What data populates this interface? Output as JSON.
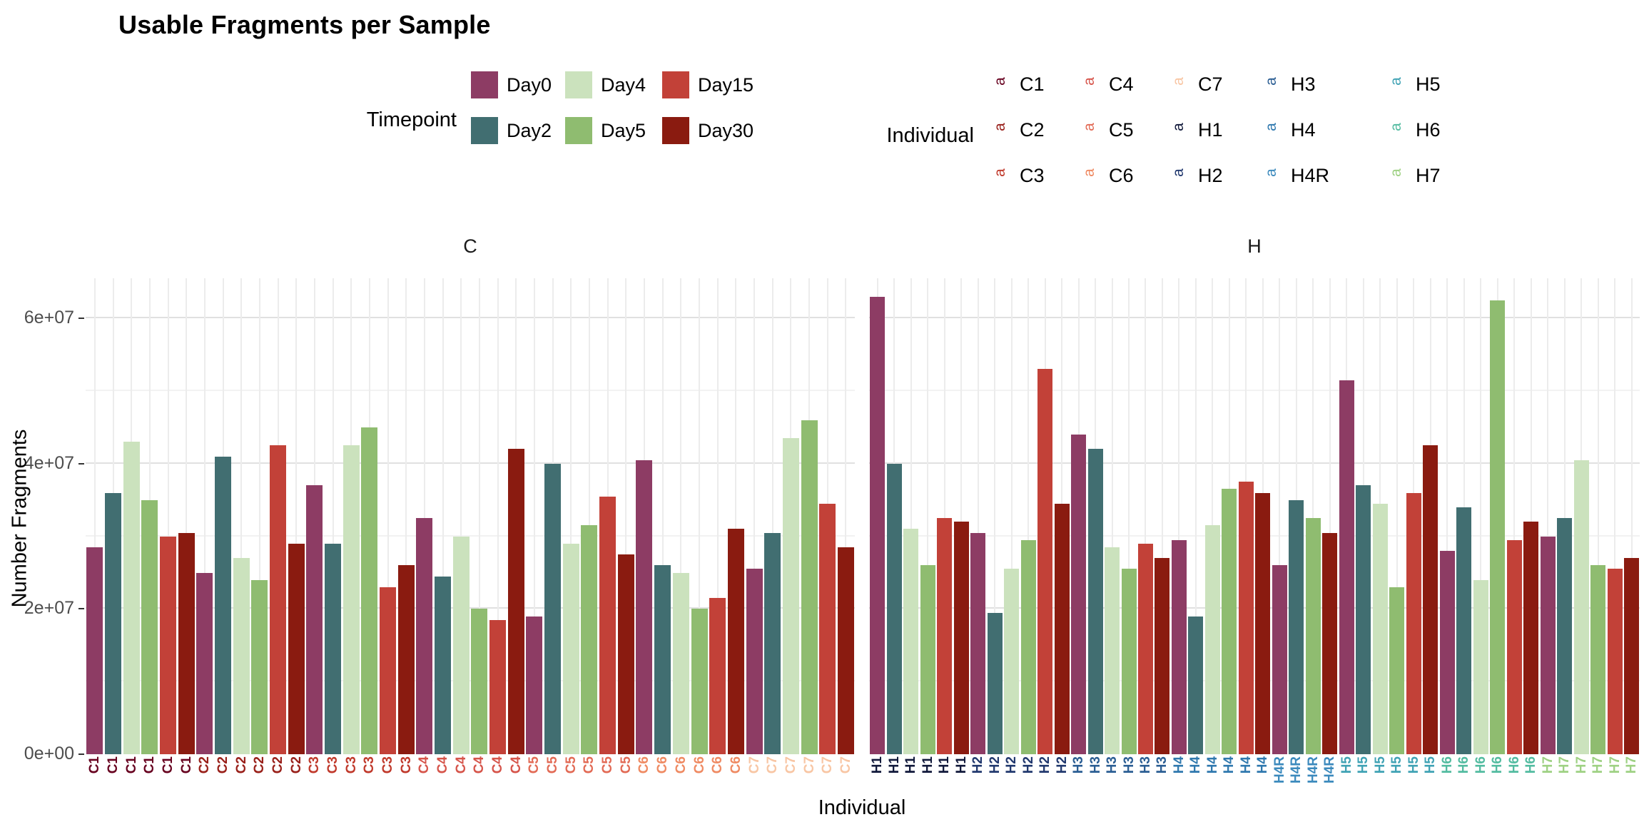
{
  "title": "Usable Fragments per Sample",
  "legends": {
    "timepoint": {
      "label": "Timepoint",
      "items": [
        {
          "label": "Day0",
          "color": "#8d3c64"
        },
        {
          "label": "Day2",
          "color": "#416e71"
        },
        {
          "label": "Day4",
          "color": "#cbe2bd"
        },
        {
          "label": "Day5",
          "color": "#8fbc70"
        },
        {
          "label": "Day15",
          "color": "#c24138"
        },
        {
          "label": "Day30",
          "color": "#8a1b10"
        }
      ]
    },
    "individual": {
      "label": "Individual",
      "glyph": "a",
      "items": [
        {
          "label": "C1",
          "color": "#67001f"
        },
        {
          "label": "C2",
          "color": "#99201a"
        },
        {
          "label": "C3",
          "color": "#c0392b"
        },
        {
          "label": "C4",
          "color": "#d6544a"
        },
        {
          "label": "C5",
          "color": "#e26a55"
        },
        {
          "label": "C6",
          "color": "#ef8a62"
        },
        {
          "label": "C7",
          "color": "#f8c6a4"
        },
        {
          "label": "H1",
          "color": "#10183a"
        },
        {
          "label": "H2",
          "color": "#21386e"
        },
        {
          "label": "H3",
          "color": "#2a5d93"
        },
        {
          "label": "H4",
          "color": "#2f78ae"
        },
        {
          "label": "H4R",
          "color": "#3c8abd"
        },
        {
          "label": "H5",
          "color": "#3fa2b4"
        },
        {
          "label": "H6",
          "color": "#52bba0"
        },
        {
          "label": "H7",
          "color": "#9ed183"
        }
      ]
    }
  },
  "chart_data": {
    "type": "bar",
    "title": "Usable Fragments per Sample",
    "xlabel": "Individual",
    "ylabel": "Number Fragments",
    "ylim": [
      0,
      65500000
    ],
    "grid": true,
    "yticks": [
      {
        "label": "0e+00",
        "value": 0
      },
      {
        "label": "2e+07",
        "value": 20000000
      },
      {
        "label": "4e+07",
        "value": 40000000
      },
      {
        "label": "6e+07",
        "value": 60000000
      }
    ],
    "yminor": [
      10000000,
      30000000,
      50000000
    ],
    "timepoint_colors": {
      "Day0": "#8d3c64",
      "Day2": "#416e71",
      "Day4": "#cbe2bd",
      "Day5": "#8fbc70",
      "Day15": "#c24138",
      "Day30": "#8a1b10"
    },
    "facets": [
      {
        "name": "C",
        "groups": [
          {
            "individual": "C1",
            "label_color": "#67001f",
            "bars": [
              {
                "timepoint": "Day0",
                "value": 28500000
              },
              {
                "timepoint": "Day2",
                "value": 36000000
              },
              {
                "timepoint": "Day4",
                "value": 43000000
              },
              {
                "timepoint": "Day5",
                "value": 35000000
              },
              {
                "timepoint": "Day15",
                "value": 30000000
              },
              {
                "timepoint": "Day30",
                "value": 30500000
              }
            ]
          },
          {
            "individual": "C2",
            "label_color": "#99201a",
            "bars": [
              {
                "timepoint": "Day0",
                "value": 25000000
              },
              {
                "timepoint": "Day2",
                "value": 41000000
              },
              {
                "timepoint": "Day4",
                "value": 27000000
              },
              {
                "timepoint": "Day5",
                "value": 24000000
              },
              {
                "timepoint": "Day15",
                "value": 42500000
              },
              {
                "timepoint": "Day30",
                "value": 29000000
              }
            ]
          },
          {
            "individual": "C3",
            "label_color": "#c0392b",
            "bars": [
              {
                "timepoint": "Day0",
                "value": 37000000
              },
              {
                "timepoint": "Day2",
                "value": 29000000
              },
              {
                "timepoint": "Day4",
                "value": 42500000
              },
              {
                "timepoint": "Day5",
                "value": 45000000
              },
              {
                "timepoint": "Day15",
                "value": 23000000
              },
              {
                "timepoint": "Day30",
                "value": 26000000
              }
            ]
          },
          {
            "individual": "C4",
            "label_color": "#d6544a",
            "bars": [
              {
                "timepoint": "Day0",
                "value": 32500000
              },
              {
                "timepoint": "Day2",
                "value": 24500000
              },
              {
                "timepoint": "Day4",
                "value": 30000000
              },
              {
                "timepoint": "Day5",
                "value": 20000000
              },
              {
                "timepoint": "Day15",
                "value": 18500000
              },
              {
                "timepoint": "Day30",
                "value": 42000000
              }
            ]
          },
          {
            "individual": "C5",
            "label_color": "#e26a55",
            "bars": [
              {
                "timepoint": "Day0",
                "value": 19000000
              },
              {
                "timepoint": "Day2",
                "value": 40000000
              },
              {
                "timepoint": "Day4",
                "value": 29000000
              },
              {
                "timepoint": "Day5",
                "value": 31500000
              },
              {
                "timepoint": "Day15",
                "value": 35500000
              },
              {
                "timepoint": "Day30",
                "value": 27500000
              }
            ]
          },
          {
            "individual": "C6",
            "label_color": "#ef8a62",
            "bars": [
              {
                "timepoint": "Day0",
                "value": 40500000
              },
              {
                "timepoint": "Day2",
                "value": 26000000
              },
              {
                "timepoint": "Day4",
                "value": 25000000
              },
              {
                "timepoint": "Day5",
                "value": 20000000
              },
              {
                "timepoint": "Day15",
                "value": 21500000
              },
              {
                "timepoint": "Day30",
                "value": 31000000
              }
            ]
          },
          {
            "individual": "C7",
            "label_color": "#f8c6a4",
            "bars": [
              {
                "timepoint": "Day0",
                "value": 25500000
              },
              {
                "timepoint": "Day2",
                "value": 30500000
              },
              {
                "timepoint": "Day4",
                "value": 43500000
              },
              {
                "timepoint": "Day5",
                "value": 46000000
              },
              {
                "timepoint": "Day15",
                "value": 34500000
              },
              {
                "timepoint": "Day30",
                "value": 28500000
              }
            ]
          }
        ]
      },
      {
        "name": "H",
        "groups": [
          {
            "individual": "H1",
            "label_color": "#10183a",
            "bars": [
              {
                "timepoint": "Day0",
                "value": 63000000
              },
              {
                "timepoint": "Day2",
                "value": 40000000
              },
              {
                "timepoint": "Day4",
                "value": 31000000
              },
              {
                "timepoint": "Day5",
                "value": 26000000
              },
              {
                "timepoint": "Day15",
                "value": 32500000
              },
              {
                "timepoint": "Day30",
                "value": 32000000
              }
            ]
          },
          {
            "individual": "H2",
            "label_color": "#21386e",
            "bars": [
              {
                "timepoint": "Day0",
                "value": 30500000
              },
              {
                "timepoint": "Day2",
                "value": 19500000
              },
              {
                "timepoint": "Day4",
                "value": 25500000
              },
              {
                "timepoint": "Day5",
                "value": 29500000
              },
              {
                "timepoint": "Day15",
                "value": 53000000
              },
              {
                "timepoint": "Day30",
                "value": 34500000
              }
            ]
          },
          {
            "individual": "H3",
            "label_color": "#2a5d93",
            "bars": [
              {
                "timepoint": "Day0",
                "value": 44000000
              },
              {
                "timepoint": "Day2",
                "value": 42000000
              },
              {
                "timepoint": "Day4",
                "value": 28500000
              },
              {
                "timepoint": "Day5",
                "value": 25500000
              },
              {
                "timepoint": "Day15",
                "value": 29000000
              },
              {
                "timepoint": "Day30",
                "value": 27000000
              }
            ]
          },
          {
            "individual": "H4",
            "label_color": "#2f78ae",
            "bars": [
              {
                "timepoint": "Day0",
                "value": 29500000
              },
              {
                "timepoint": "Day2",
                "value": 19000000
              },
              {
                "timepoint": "Day4",
                "value": 31500000
              },
              {
                "timepoint": "Day5",
                "value": 36500000
              },
              {
                "timepoint": "Day15",
                "value": 37500000
              },
              {
                "timepoint": "Day30",
                "value": 36000000
              }
            ]
          },
          {
            "individual": "H4R",
            "label_color": "#3c8abd",
            "bars": [
              {
                "timepoint": "Day0",
                "value": 26000000
              },
              {
                "timepoint": "Day2",
                "value": 35000000
              },
              {
                "timepoint": "Day5",
                "value": 32500000
              },
              {
                "timepoint": "Day30",
                "value": 30500000
              }
            ]
          },
          {
            "individual": "H5",
            "label_color": "#3fa2b4",
            "bars": [
              {
                "timepoint": "Day0",
                "value": 51500000
              },
              {
                "timepoint": "Day2",
                "value": 37000000
              },
              {
                "timepoint": "Day4",
                "value": 34500000
              },
              {
                "timepoint": "Day5",
                "value": 23000000
              },
              {
                "timepoint": "Day15",
                "value": 36000000
              },
              {
                "timepoint": "Day30",
                "value": 42500000
              }
            ]
          },
          {
            "individual": "H6",
            "label_color": "#52bba0",
            "bars": [
              {
                "timepoint": "Day0",
                "value": 28000000
              },
              {
                "timepoint": "Day2",
                "value": 34000000
              },
              {
                "timepoint": "Day4",
                "value": 24000000
              },
              {
                "timepoint": "Day5",
                "value": 62500000
              },
              {
                "timepoint": "Day15",
                "value": 29500000
              },
              {
                "timepoint": "Day30",
                "value": 32000000
              }
            ]
          },
          {
            "individual": "H7",
            "label_color": "#9ed183",
            "bars": [
              {
                "timepoint": "Day0",
                "value": 30000000
              },
              {
                "timepoint": "Day2",
                "value": 32500000
              },
              {
                "timepoint": "Day4",
                "value": 40500000
              },
              {
                "timepoint": "Day5",
                "value": 26000000
              },
              {
                "timepoint": "Day15",
                "value": 25500000
              },
              {
                "timepoint": "Day30",
                "value": 27000000
              }
            ]
          }
        ]
      }
    ]
  }
}
